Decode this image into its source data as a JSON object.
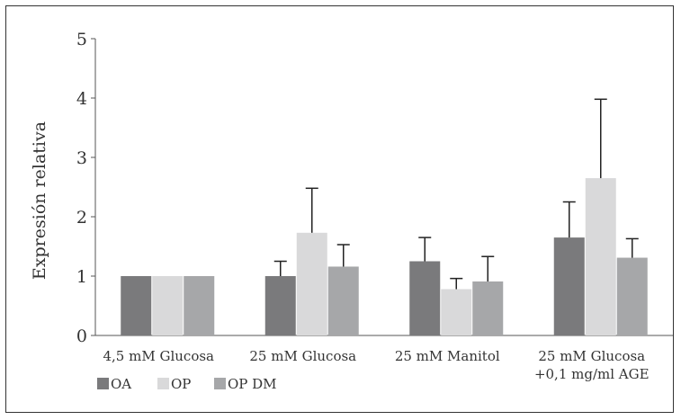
{
  "chart_data": {
    "type": "bar",
    "ylabel": "Expresión relativa",
    "xlabel": "",
    "ylim": [
      0,
      5
    ],
    "yticks": [
      "0",
      "1",
      "2",
      "3",
      "4",
      "5"
    ],
    "categories": [
      [
        "4,5 mM Glucosa"
      ],
      [
        "25 mM Glucosa"
      ],
      [
        "25 mM Manitol"
      ],
      [
        "25 mM Glucosa",
        "+0,1 mg/ml AGE"
      ]
    ],
    "series": [
      {
        "name": "OA",
        "color": "#7a7a7c",
        "values": [
          1.0,
          1.0,
          1.25,
          1.65
        ],
        "errors": [
          0,
          0.25,
          0.4,
          0.6
        ]
      },
      {
        "name": "OP",
        "color": "#d9d9da",
        "values": [
          1.0,
          1.73,
          0.78,
          2.65
        ],
        "errors": [
          0,
          0.75,
          0.18,
          1.33
        ]
      },
      {
        "name": "OP DM",
        "color": "#a6a7a9",
        "values": [
          1.0,
          1.16,
          0.91,
          1.31
        ],
        "errors": [
          0,
          0.37,
          0.42,
          0.32
        ]
      }
    ],
    "grid": false,
    "legend_position": "bottom-left"
  }
}
